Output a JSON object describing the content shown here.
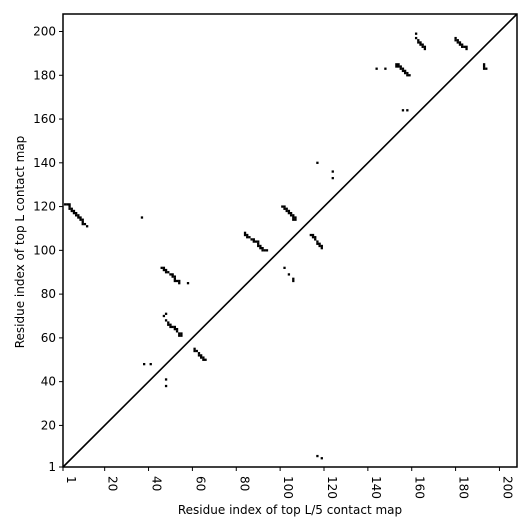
{
  "chart_data": {
    "type": "scatter",
    "xlabel": "Residue index of top L/5 contact map",
    "ylabel": "Residue index of top L contact map",
    "xlim": [
      1,
      208
    ],
    "ylim": [
      1,
      208
    ],
    "x_ticks": [
      1,
      20,
      40,
      60,
      80,
      100,
      120,
      140,
      160,
      180,
      200
    ],
    "y_ticks": [
      1,
      20,
      40,
      60,
      80,
      100,
      120,
      140,
      160,
      180,
      200
    ],
    "grid": false,
    "diagonal": true,
    "marker_color": "#000000",
    "series": [
      {
        "points": [
          [
            2,
            121
          ],
          [
            3,
            121
          ],
          [
            4,
            121
          ],
          [
            4,
            120
          ],
          [
            4,
            119
          ],
          [
            5,
            119
          ],
          [
            5,
            118
          ],
          [
            6,
            118
          ],
          [
            6,
            117
          ],
          [
            7,
            117
          ],
          [
            7,
            116
          ],
          [
            8,
            116
          ],
          [
            8,
            115
          ],
          [
            9,
            115
          ],
          [
            9,
            114
          ],
          [
            10,
            114
          ],
          [
            10,
            113
          ],
          [
            10,
            112
          ],
          [
            11,
            112
          ],
          [
            12,
            111
          ],
          [
            37,
            115
          ],
          [
            38,
            48
          ],
          [
            41,
            48
          ],
          [
            46,
            92
          ],
          [
            47,
            92
          ],
          [
            47,
            91
          ],
          [
            48,
            91
          ],
          [
            48,
            90
          ],
          [
            49,
            90
          ],
          [
            50,
            89
          ],
          [
            51,
            89
          ],
          [
            51,
            88
          ],
          [
            52,
            88
          ],
          [
            52,
            87
          ],
          [
            52,
            86
          ],
          [
            53,
            86
          ],
          [
            54,
            86
          ],
          [
            54,
            85
          ],
          [
            58,
            85
          ],
          [
            47,
            70
          ],
          [
            48,
            71
          ],
          [
            48,
            68
          ],
          [
            49,
            67
          ],
          [
            49,
            66
          ],
          [
            50,
            66
          ],
          [
            50,
            65
          ],
          [
            51,
            65
          ],
          [
            52,
            65
          ],
          [
            52,
            64
          ],
          [
            53,
            64
          ],
          [
            53,
            63
          ],
          [
            54,
            62
          ],
          [
            54,
            61
          ],
          [
            55,
            62
          ],
          [
            55,
            61
          ],
          [
            48,
            41
          ],
          [
            48,
            38
          ],
          [
            61,
            55
          ],
          [
            61,
            54
          ],
          [
            62,
            54
          ],
          [
            63,
            53
          ],
          [
            63,
            52
          ],
          [
            64,
            52
          ],
          [
            64,
            51
          ],
          [
            65,
            51
          ],
          [
            65,
            50
          ],
          [
            66,
            50
          ],
          [
            84,
            108
          ],
          [
            84,
            107
          ],
          [
            85,
            107
          ],
          [
            85,
            106
          ],
          [
            86,
            106
          ],
          [
            87,
            105
          ],
          [
            88,
            105
          ],
          [
            88,
            104
          ],
          [
            89,
            104
          ],
          [
            90,
            104
          ],
          [
            90,
            103
          ],
          [
            90,
            102
          ],
          [
            91,
            102
          ],
          [
            91,
            101
          ],
          [
            92,
            101
          ],
          [
            92,
            100
          ],
          [
            93,
            100
          ],
          [
            94,
            100
          ],
          [
            101,
            120
          ],
          [
            102,
            120
          ],
          [
            102,
            119
          ],
          [
            103,
            119
          ],
          [
            103,
            118
          ],
          [
            104,
            118
          ],
          [
            104,
            117
          ],
          [
            105,
            117
          ],
          [
            105,
            116
          ],
          [
            106,
            116
          ],
          [
            106,
            115
          ],
          [
            106,
            114
          ],
          [
            107,
            115
          ],
          [
            107,
            114
          ],
          [
            102,
            92
          ],
          [
            104,
            89
          ],
          [
            106,
            87
          ],
          [
            106,
            86
          ],
          [
            114,
            107
          ],
          [
            115,
            107
          ],
          [
            115,
            106
          ],
          [
            116,
            106
          ],
          [
            116,
            105
          ],
          [
            117,
            104
          ],
          [
            117,
            103
          ],
          [
            118,
            103
          ],
          [
            118,
            102
          ],
          [
            119,
            102
          ],
          [
            119,
            101
          ],
          [
            117,
            140
          ],
          [
            117,
            6
          ],
          [
            119,
            5
          ],
          [
            124,
            136
          ],
          [
            124,
            133
          ],
          [
            144,
            183
          ],
          [
            148,
            183
          ],
          [
            153,
            185
          ],
          [
            153,
            184
          ],
          [
            154,
            185
          ],
          [
            154,
            184
          ],
          [
            155,
            184
          ],
          [
            155,
            183
          ],
          [
            156,
            183
          ],
          [
            156,
            182
          ],
          [
            157,
            182
          ],
          [
            157,
            181
          ],
          [
            158,
            181
          ],
          [
            158,
            180
          ],
          [
            159,
            180
          ],
          [
            156,
            164
          ],
          [
            158,
            164
          ],
          [
            162,
            199
          ],
          [
            162,
            197
          ],
          [
            163,
            196
          ],
          [
            163,
            195
          ],
          [
            164,
            195
          ],
          [
            164,
            194
          ],
          [
            165,
            194
          ],
          [
            165,
            193
          ],
          [
            166,
            193
          ],
          [
            166,
            192
          ],
          [
            180,
            197
          ],
          [
            180,
            196
          ],
          [
            181,
            196
          ],
          [
            181,
            195
          ],
          [
            182,
            195
          ],
          [
            182,
            194
          ],
          [
            183,
            194
          ],
          [
            183,
            193
          ],
          [
            184,
            193
          ],
          [
            185,
            193
          ],
          [
            185,
            192
          ],
          [
            193,
            185
          ],
          [
            193,
            184
          ],
          [
            193,
            183
          ],
          [
            194,
            183
          ]
        ]
      }
    ]
  }
}
